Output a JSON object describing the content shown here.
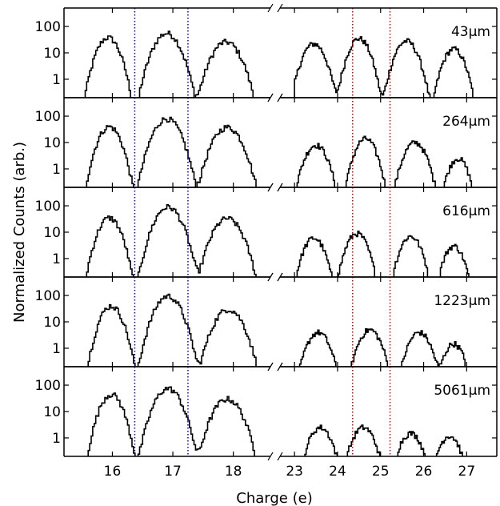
{
  "chart_data": {
    "type": "step",
    "xlabel": "Charge (e)",
    "ylabel": "Normalized Counts (arb.)",
    "y_scale": "log",
    "ylim": [
      0.2,
      500
    ],
    "yticks": [
      1,
      10,
      100
    ],
    "ytick_labels": [
      "1",
      "10",
      "100"
    ],
    "xlim_left": [
      15.2,
      18.6
    ],
    "xlim_right": [
      22.7,
      27.7
    ],
    "xticks_left": [
      16,
      17,
      18
    ],
    "xticks_right": [
      23,
      24,
      25,
      26,
      27
    ],
    "xtick_labels_left": [
      "16",
      "17",
      "18"
    ],
    "xtick_labels_right": [
      "23",
      "24",
      "25",
      "26",
      "27"
    ],
    "axis_break": true,
    "vlines": [
      {
        "x": 16.37,
        "color": "#0000cc",
        "style": "dotted"
      },
      {
        "x": 17.25,
        "color": "#0000cc",
        "style": "dotted"
      },
      {
        "x": 24.35,
        "color": "#dd0000",
        "style": "dotted"
      },
      {
        "x": 25.22,
        "color": "#dd0000",
        "style": "dotted"
      }
    ],
    "panels": [
      {
        "label": "43μm",
        "peaks": [
          {
            "center": 15.93,
            "height": 38,
            "width": 0.12
          },
          {
            "center": 16.9,
            "height": 55,
            "width": 0.14
          },
          {
            "center": 17.88,
            "height": 26,
            "width": 0.15
          },
          {
            "center": 23.45,
            "height": 22,
            "width": 0.17
          },
          {
            "center": 24.5,
            "height": 35,
            "width": 0.16
          },
          {
            "center": 25.6,
            "height": 28,
            "width": 0.17
          },
          {
            "center": 26.7,
            "height": 14,
            "width": 0.16
          }
        ]
      },
      {
        "label": "264μm",
        "peaks": [
          {
            "center": 15.95,
            "height": 40,
            "width": 0.12
          },
          {
            "center": 16.9,
            "height": 80,
            "width": 0.14
          },
          {
            "center": 17.9,
            "height": 38,
            "width": 0.15
          },
          {
            "center": 23.5,
            "height": 8,
            "width": 0.17
          },
          {
            "center": 24.65,
            "height": 14,
            "width": 0.16
          },
          {
            "center": 25.8,
            "height": 10,
            "width": 0.17
          },
          {
            "center": 26.8,
            "height": 2.5,
            "width": 0.15
          }
        ]
      },
      {
        "label": "616μm",
        "peaks": [
          {
            "center": 15.95,
            "height": 35,
            "width": 0.12
          },
          {
            "center": 16.92,
            "height": 90,
            "width": 0.14
          },
          {
            "center": 17.9,
            "height": 33,
            "width": 0.15
          },
          {
            "center": 23.45,
            "height": 6,
            "width": 0.16
          },
          {
            "center": 24.45,
            "height": 9,
            "width": 0.16
          },
          {
            "center": 25.7,
            "height": 7,
            "width": 0.16
          },
          {
            "center": 26.7,
            "height": 3,
            "width": 0.15
          }
        ]
      },
      {
        "label": "1223μm",
        "peaks": [
          {
            "center": 15.98,
            "height": 40,
            "width": 0.12
          },
          {
            "center": 16.92,
            "height": 95,
            "width": 0.14
          },
          {
            "center": 17.92,
            "height": 30,
            "width": 0.15
          },
          {
            "center": 23.55,
            "height": 4,
            "width": 0.17
          },
          {
            "center": 24.75,
            "height": 5,
            "width": 0.17
          },
          {
            "center": 25.9,
            "height": 4,
            "width": 0.17
          },
          {
            "center": 26.7,
            "height": 1.5,
            "width": 0.15
          }
        ]
      },
      {
        "label": "5061μm",
        "peaks": [
          {
            "center": 15.98,
            "height": 45,
            "width": 0.12
          },
          {
            "center": 16.92,
            "height": 75,
            "width": 0.14
          },
          {
            "center": 17.9,
            "height": 30,
            "width": 0.15
          },
          {
            "center": 23.6,
            "height": 2.5,
            "width": 0.17
          },
          {
            "center": 24.6,
            "height": 2.5,
            "width": 0.17
          },
          {
            "center": 25.7,
            "height": 1.5,
            "width": 0.17
          },
          {
            "center": 26.6,
            "height": 1.2,
            "width": 0.16
          }
        ]
      }
    ]
  }
}
